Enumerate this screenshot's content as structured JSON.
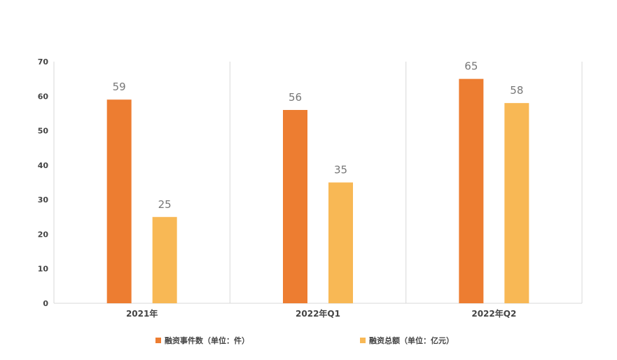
{
  "chart_data": {
    "type": "bar",
    "categories": [
      "2021年",
      "2022年Q1",
      "2022年Q2"
    ],
    "series": [
      {
        "name": "融资事件数（单位：件）",
        "values": [
          59,
          56,
          65
        ],
        "color": "#ED7D31"
      },
      {
        "name": "融资总额（单位：亿元）",
        "values": [
          25,
          35,
          58
        ],
        "color": "#F8B855"
      }
    ],
    "ylim": [
      0,
      70
    ],
    "yticks": [
      0,
      10,
      20,
      30,
      40,
      50,
      60,
      70
    ],
    "grid": false,
    "legend_position": "bottom",
    "data_labels": true
  }
}
